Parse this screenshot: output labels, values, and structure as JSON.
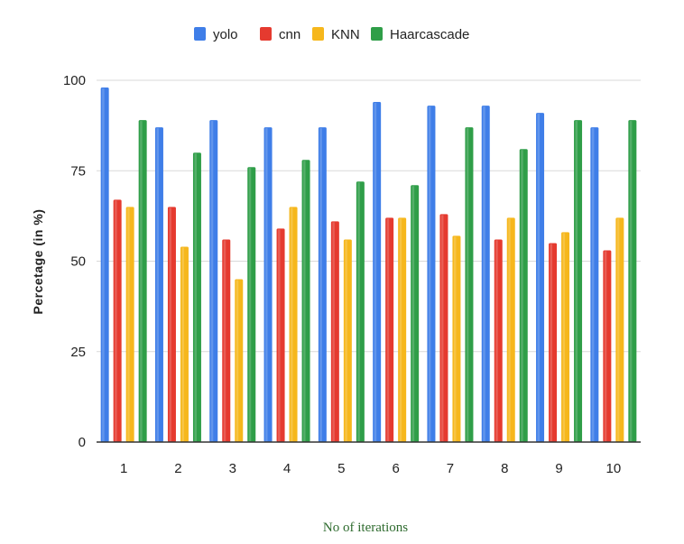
{
  "chart_data": {
    "type": "bar",
    "categories": [
      "1",
      "2",
      "3",
      "4",
      "5",
      "6",
      "7",
      "8",
      "9",
      "10"
    ],
    "series": [
      {
        "name": "yolo",
        "color": "#3f7ee8",
        "values": [
          98,
          87,
          89,
          87,
          87,
          94,
          93,
          93,
          91,
          87
        ]
      },
      {
        "name": "cnn",
        "color": "#e53a2f",
        "values": [
          67,
          65,
          56,
          59,
          61,
          62,
          63,
          56,
          55,
          53
        ]
      },
      {
        "name": "KNN",
        "color": "#f6b71c",
        "values": [
          65,
          54,
          45,
          65,
          56,
          62,
          57,
          62,
          58,
          62
        ]
      },
      {
        "name": "Haarcascade",
        "color": "#2f9e48",
        "values": [
          89,
          80,
          76,
          78,
          72,
          71,
          87,
          81,
          89,
          89
        ]
      }
    ],
    "title": "",
    "xlabel": "No of iterations",
    "ylabel": "Percetage (in %)",
    "ylim": [
      0,
      100
    ],
    "yticks": [
      "0",
      "25",
      "50",
      "75",
      "100"
    ],
    "grid": true,
    "legend_position": "top-center"
  }
}
